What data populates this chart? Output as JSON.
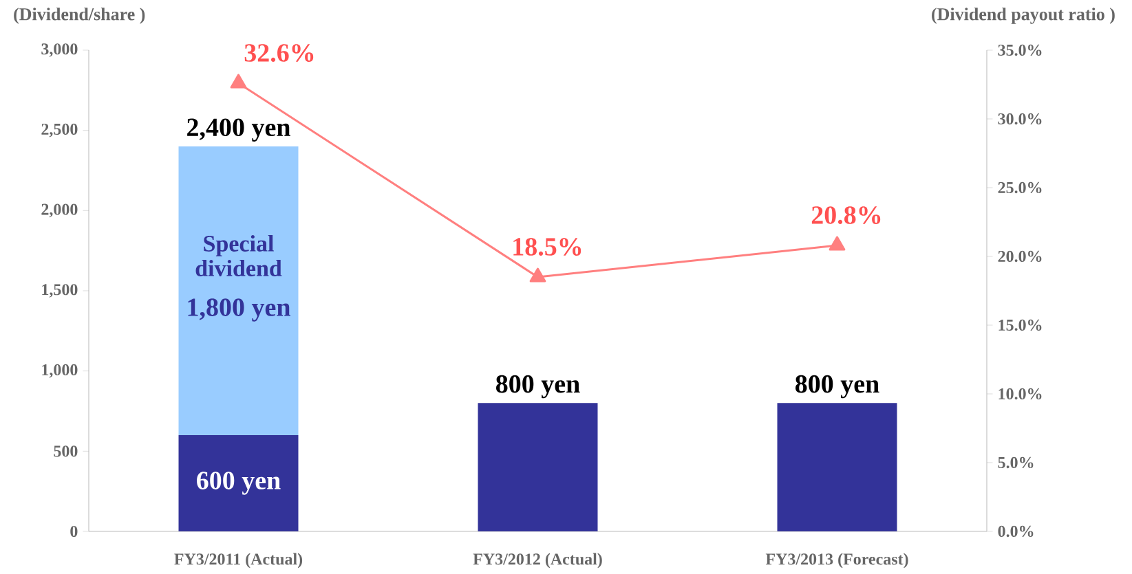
{
  "chart_data": {
    "type": "bar",
    "stacked": true,
    "categories": [
      "FY3/2011 (Actual)",
      "FY3/2012 (Actual)",
      "FY3/2013 (Forecast)"
    ],
    "ylabel": "(Dividend/share )",
    "y2label": "(Dividend payout ratio )",
    "ylim": [
      0,
      3000
    ],
    "yticks": [
      0,
      500,
      {
        "value": 1000,
        "label": "1,000"
      },
      {
        "value": 1500,
        "label": "1,500"
      },
      {
        "value": 2000,
        "label": "2,000"
      },
      {
        "value": 2500,
        "label": "2,500"
      },
      {
        "value": 3000,
        "label": "3,000"
      }
    ],
    "y2lim": [
      0,
      35
    ],
    "y2ticks": [
      {
        "value": 0,
        "label": "0.0%"
      },
      {
        "value": 5,
        "label": "5.0%"
      },
      {
        "value": 10,
        "label": "10.0%"
      },
      {
        "value": 15,
        "label": "15.0%"
      },
      {
        "value": 20,
        "label": "20.0%"
      },
      {
        "value": 25,
        "label": "25.0%"
      },
      {
        "value": 30,
        "label": "30.0%"
      },
      {
        "value": 35,
        "label": "35.0%"
      }
    ],
    "totals": [
      "2,400 yen",
      "800 yen",
      "800 yen"
    ],
    "series": [
      {
        "color": "#333399",
        "values": [
          600,
          800,
          800
        ],
        "value_labels": [
          "600 yen",
          null,
          null
        ]
      },
      {
        "name": "Special dividend",
        "color": "#99ccff",
        "values": [
          1800,
          null,
          null
        ],
        "value_labels": [
          "1,800 yen",
          null,
          null
        ]
      },
      {
        "type": "line",
        "axis": "y2",
        "color": "#ff7f7f",
        "marker": "triangle",
        "values": [
          32.6,
          18.5,
          20.8
        ],
        "value_labels": [
          "32.6%",
          "18.5%",
          "20.8%"
        ]
      }
    ]
  }
}
